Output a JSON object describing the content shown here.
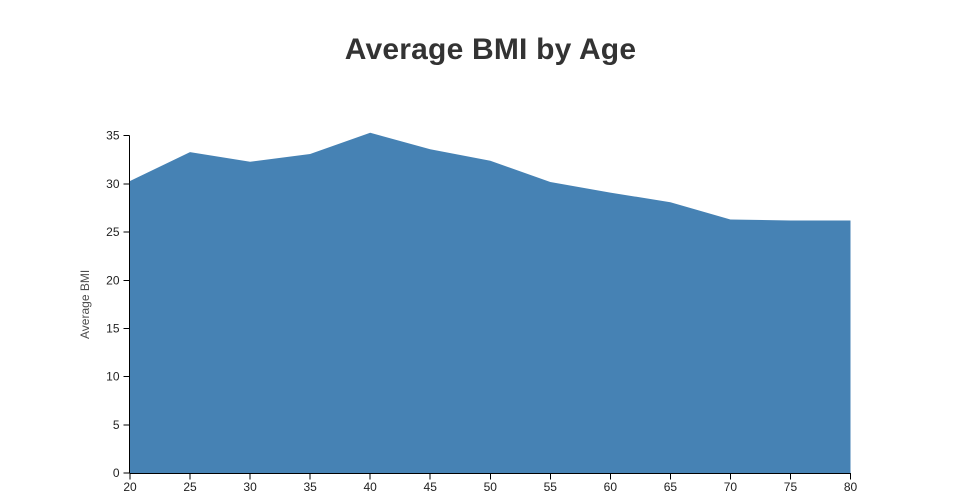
{
  "page": {
    "background_color": "#ffffff"
  },
  "chart_data": {
    "type": "area",
    "title": "Average BMI by Age",
    "xlabel": "",
    "ylabel": "Average BMI",
    "x": [
      20,
      25,
      30,
      35,
      40,
      45,
      50,
      55,
      60,
      65,
      70,
      75,
      80
    ],
    "series": [
      {
        "name": "Average BMI",
        "values": [
          30.3,
          33.3,
          32.3,
          33.1,
          35.3,
          33.6,
          32.4,
          30.2,
          29.1,
          28.1,
          26.3,
          26.2,
          26.2
        ]
      }
    ],
    "xlim": [
      20,
      80
    ],
    "ylim": [
      0,
      35
    ],
    "x_ticks": [
      20,
      25,
      30,
      35,
      40,
      45,
      50,
      55,
      60,
      65,
      70,
      75,
      80
    ],
    "y_ticks": [
      0,
      5,
      10,
      15,
      20,
      25,
      30,
      35
    ],
    "grid": false,
    "legend_position": "none",
    "area_color": "#4682b4",
    "axis_color": "#000000",
    "tick_label_color": "#222222",
    "ylabel_color": "#4d4d4d",
    "title_color": "#333333"
  }
}
